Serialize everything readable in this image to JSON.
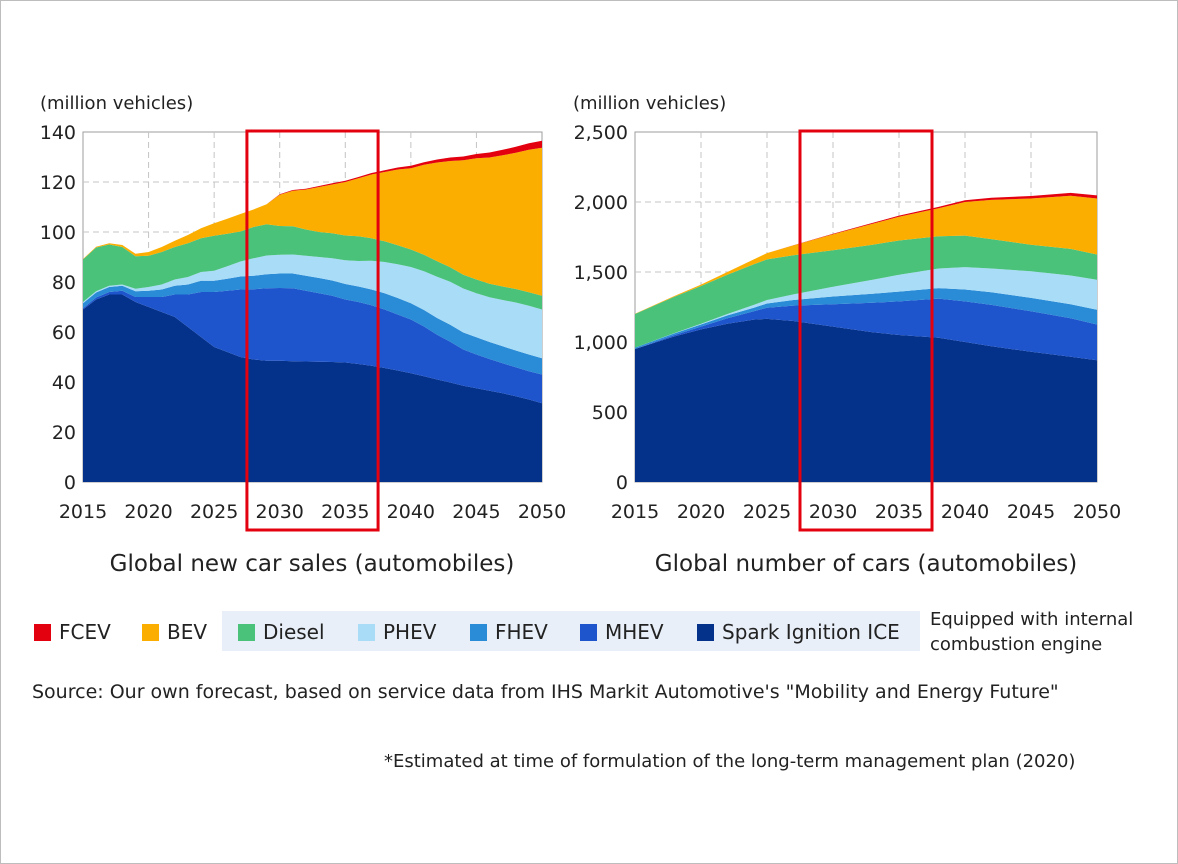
{
  "legend": {
    "items": [
      {
        "label": "FCEV",
        "color": "#e3000f"
      },
      {
        "label": "BEV",
        "color": "#fcae00"
      },
      {
        "label": "Diesel",
        "color": "#4ac27a"
      },
      {
        "label": "PHEV",
        "color": "#a8dcf7"
      },
      {
        "label": "FHEV",
        "color": "#2a8bd6"
      },
      {
        "label": "MHEV",
        "color": "#1f55cc"
      },
      {
        "label": "Spark Ignition ICE",
        "color": "#04318a"
      }
    ],
    "ice_group_note": "Equipped with internal combustion engine"
  },
  "source": "Source: Our own forecast, based on service data from IHS Markit Automotive's \"Mobility and Energy Future\"",
  "footnote": "*Estimated at time of formulation of the long-term management plan (2020)",
  "chart_data": [
    {
      "type": "area",
      "stacked": true,
      "title": "Global new car sales (automobiles)",
      "ylabel": "(million vehicles)",
      "xlabel": "",
      "ylim": [
        0,
        140
      ],
      "xlim": [
        2015,
        2050
      ],
      "x_ticks": [
        2015,
        2020,
        2025,
        2030,
        2035,
        2040,
        2045,
        2050
      ],
      "y_ticks": [
        0,
        20,
        40,
        60,
        80,
        100,
        120,
        140
      ],
      "y_tick_labels": [
        "0",
        "20",
        "40",
        "60",
        "80",
        "100",
        "120",
        "140"
      ],
      "grid": true,
      "highlight_x_range": [
        2027.5,
        2037.5
      ],
      "x": [
        2015,
        2016,
        2017,
        2018,
        2019,
        2020,
        2021,
        2022,
        2023,
        2024,
        2025,
        2026,
        2027,
        2028,
        2029,
        2030,
        2031,
        2032,
        2033,
        2034,
        2035,
        2036,
        2037,
        2038,
        2039,
        2040,
        2041,
        2042,
        2043,
        2044,
        2045,
        2046,
        2047,
        2048,
        2049,
        2050
      ],
      "series": [
        {
          "name": "Spark Ignition ICE",
          "values": [
            69,
            73,
            75,
            75,
            72,
            70,
            68,
            66,
            62,
            58,
            54,
            52,
            50,
            49,
            48.5,
            48.5,
            48.3,
            48.2,
            48.1,
            48,
            47.8,
            47.2,
            46.5,
            45.6,
            44.6,
            43.5,
            42.3,
            41,
            39.8,
            38.5,
            37.5,
            36.5,
            35.5,
            34.3,
            33,
            31.5
          ]
        },
        {
          "name": "MHEV",
          "values": [
            0.5,
            0.8,
            1,
            1.5,
            2,
            4,
            6,
            9,
            13,
            18,
            22,
            24.5,
            27,
            28.1,
            29,
            29.1,
            29.2,
            28.3,
            27.4,
            26.5,
            25.2,
            24.8,
            24.2,
            23.4,
            22.4,
            21.5,
            19.9,
            17.9,
            16.3,
            14.5,
            13.5,
            12.7,
            12,
            11.6,
            11.3,
            11.5
          ]
        },
        {
          "name": "FHEV",
          "values": [
            2,
            2,
            2,
            2,
            2.3,
            2.5,
            3,
            3.5,
            4,
            4.5,
            4.5,
            4.8,
            5.2,
            5.4,
            5.6,
            5.8,
            5.9,
            6,
            6.1,
            6.1,
            6.2,
            6.2,
            6.3,
            6.5,
            6.6,
            6.5,
            6.6,
            6.7,
            6.8,
            6.8,
            6.9,
            6.8,
            6.8,
            6.7,
            6.7,
            6.5
          ]
        },
        {
          "name": "PHEV",
          "values": [
            0.5,
            0.5,
            0.5,
            0.5,
            1,
            1.5,
            2,
            2.5,
            3,
            3.5,
            4,
            5,
            6,
            7,
            7.5,
            7.5,
            7.6,
            8,
            8.4,
            8.9,
            9.5,
            10.2,
            11.5,
            12.5,
            13.5,
            14.5,
            15.5,
            16.5,
            17.2,
            17.6,
            17.6,
            17.9,
            18.5,
            19.2,
            19.5,
            19.5
          ]
        },
        {
          "name": "Diesel",
          "values": [
            17,
            17.5,
            16.5,
            15,
            13,
            12.5,
            13,
            13,
            13.5,
            13.5,
            14,
            13,
            12,
            12.5,
            12.5,
            11.5,
            11.3,
            10.5,
            10,
            10,
            9.9,
            9.9,
            9,
            8.3,
            7.6,
            7,
            6.6,
            6.2,
            5.8,
            5.5,
            5.5,
            5.4,
            5.4,
            5.4,
            5.4,
            5.5
          ]
        },
        {
          "name": "BEV",
          "values": [
            0.2,
            0.3,
            0.5,
            0.8,
            1,
            1.5,
            2,
            2.5,
            3.3,
            4,
            5,
            6,
            7,
            7,
            8,
            12.5,
            14.2,
            16,
            18,
            19.5,
            21.4,
            23.2,
            25.5,
            27.7,
            30.3,
            32.5,
            36,
            39.5,
            42.5,
            45.8,
            48.5,
            50.5,
            52.5,
            54.5,
            57,
            59.2
          ]
        },
        {
          "name": "FCEV",
          "values": [
            0,
            0,
            0,
            0,
            0,
            0,
            0,
            0,
            0,
            0,
            0,
            0,
            0,
            0,
            0,
            0.2,
            0.3,
            0.3,
            0.4,
            0.5,
            0.5,
            0.5,
            0.6,
            0.7,
            0.8,
            1,
            1,
            1.2,
            1.4,
            1.5,
            1.7,
            2,
            2.2,
            2.4,
            2.6,
            2.8
          ]
        }
      ]
    },
    {
      "type": "area",
      "stacked": true,
      "title": "Global number of cars (automobiles)",
      "ylabel": "(million vehicles)",
      "xlabel": "",
      "ylim": [
        0,
        2500
      ],
      "xlim": [
        2015,
        2050
      ],
      "x_ticks": [
        2015,
        2020,
        2025,
        2030,
        2035,
        2040,
        2045,
        2050
      ],
      "y_ticks": [
        0,
        500,
        1000,
        1500,
        2000,
        2500
      ],
      "y_tick_labels": [
        "0",
        "500",
        "1,000",
        "1,500",
        "2,000",
        "2,500"
      ],
      "grid": true,
      "highlight_x_range": [
        2027.5,
        2037.5
      ],
      "x": [
        2015,
        2018,
        2020,
        2022,
        2024,
        2025,
        2027,
        2030,
        2033,
        2035,
        2038,
        2040,
        2042,
        2045,
        2048,
        2050
      ],
      "series": [
        {
          "name": "Spark Ignition ICE",
          "values": [
            950,
            1040,
            1090,
            1130,
            1160,
            1165,
            1150,
            1110,
            1070,
            1050,
            1030,
            1000,
            970,
            930,
            895,
            870
          ]
        },
        {
          "name": "MHEV",
          "values": [
            0,
            10,
            20,
            40,
            60,
            80,
            110,
            160,
            210,
            240,
            280,
            290,
            295,
            290,
            275,
            255
          ]
        },
        {
          "name": "FHEV",
          "values": [
            10,
            12,
            15,
            20,
            25,
            30,
            40,
            55,
            65,
            70,
            75,
            85,
            90,
            95,
            100,
            105
          ]
        },
        {
          "name": "PHEV",
          "values": [
            0,
            2,
            5,
            10,
            20,
            25,
            40,
            70,
            100,
            120,
            140,
            160,
            170,
            190,
            205,
            215
          ]
        },
        {
          "name": "Diesel",
          "values": [
            240,
            260,
            270,
            280,
            290,
            290,
            280,
            260,
            250,
            245,
            230,
            225,
            210,
            190,
            190,
            180
          ]
        },
        {
          "name": "BEV",
          "values": [
            2,
            5,
            10,
            20,
            35,
            45,
            70,
            115,
            150,
            170,
            200,
            240,
            280,
            330,
            380,
            400
          ]
        },
        {
          "name": "FCEV",
          "values": [
            0,
            0,
            0,
            0,
            0,
            0,
            1,
            3,
            6,
            8,
            10,
            12,
            15,
            18,
            20,
            22
          ]
        }
      ]
    }
  ]
}
